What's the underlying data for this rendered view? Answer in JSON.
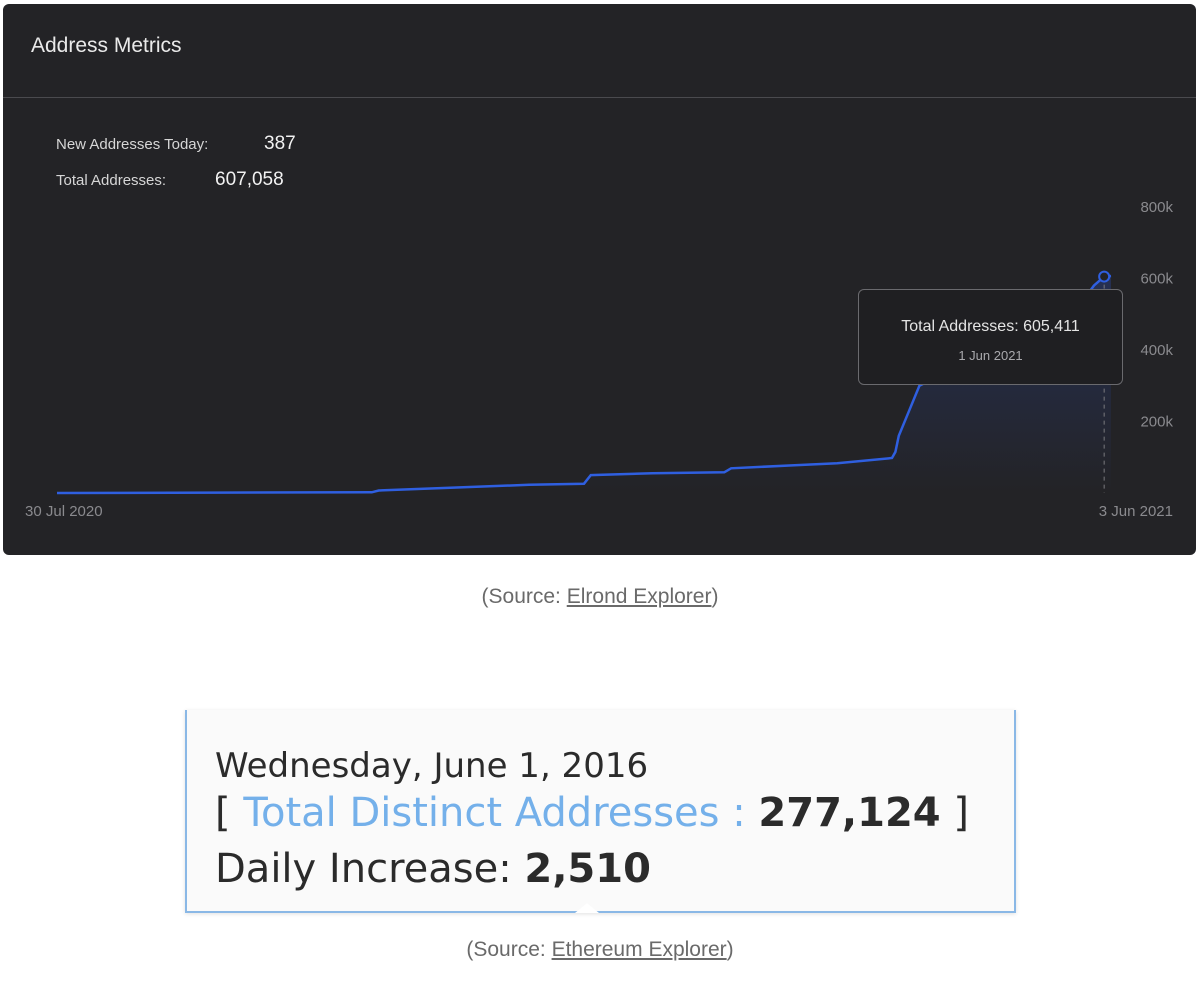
{
  "panel": {
    "title": "Address Metrics",
    "new_addresses_label": "New Addresses Today:",
    "new_addresses_value": "387",
    "total_addresses_label": "Total Addresses:",
    "total_addresses_value": "607,058"
  },
  "tooltip": {
    "title": "Total Addresses: 605,411",
    "date": "1 Jun 2021"
  },
  "caption1": {
    "prefix": "(Source: ",
    "link": "Elrond Explorer",
    "suffix": ")"
  },
  "eth": {
    "date": "Wednesday, June 1, 2016",
    "open_bracket": "[",
    "total_label": "Total Distinct Addresses :",
    "total_value": "277,124",
    "close_bracket": "]",
    "daily_label": "Daily Increase:",
    "daily_value": "2,510"
  },
  "caption2": {
    "prefix": "(Source: ",
    "link": "Ethereum Explorer",
    "suffix": ")"
  },
  "colors": {
    "panel_bg": "#232326",
    "line": "#2f5fe0",
    "eth_blue": "#74b0ea"
  },
  "chart_data": {
    "type": "line",
    "title": "Address Metrics",
    "xlabel": "",
    "ylabel": "",
    "x_tick_labels": [
      "30 Jul 2020",
      "3 Jun 2021"
    ],
    "y_tick_labels": [
      "200k",
      "400k",
      "600k",
      "800k"
    ],
    "y_ticks": [
      200000,
      400000,
      600000,
      800000
    ],
    "ylim": [
      0,
      800000
    ],
    "x_start": "2020-07-30",
    "x_end": "2021-06-03",
    "grid": false,
    "series": [
      {
        "values": [
          [
            "2020-07-30",
            0
          ],
          [
            "2020-09-15",
            1000
          ],
          [
            "2020-10-30",
            2000
          ],
          [
            "2020-11-01",
            7000
          ],
          [
            "2020-11-20",
            14000
          ],
          [
            "2020-12-15",
            23000
          ],
          [
            "2020-12-31",
            26000
          ],
          [
            "2021-01-02",
            50000
          ],
          [
            "2021-01-20",
            55000
          ],
          [
            "2021-02-10",
            58000
          ],
          [
            "2021-02-12",
            69000
          ],
          [
            "2021-03-01",
            77000
          ],
          [
            "2021-03-15",
            83000
          ],
          [
            "2021-03-31",
            98000
          ],
          [
            "2021-04-01",
            115000
          ],
          [
            "2021-04-02",
            160000
          ],
          [
            "2021-04-05",
            230000
          ],
          [
            "2021-04-08",
            300000
          ],
          [
            "2021-04-15",
            335000
          ],
          [
            "2021-04-25",
            365000
          ],
          [
            "2021-05-05",
            390000
          ],
          [
            "2021-05-15",
            410000
          ],
          [
            "2021-05-22",
            450000
          ],
          [
            "2021-05-26",
            540000
          ],
          [
            "2021-05-29",
            580000
          ],
          [
            "2021-06-01",
            605411
          ],
          [
            "2021-06-02",
            605800
          ],
          [
            "2021-06-03",
            607058
          ]
        ]
      }
    ],
    "tooltip_point": {
      "x": "2021-06-01",
      "y": 605411
    }
  }
}
